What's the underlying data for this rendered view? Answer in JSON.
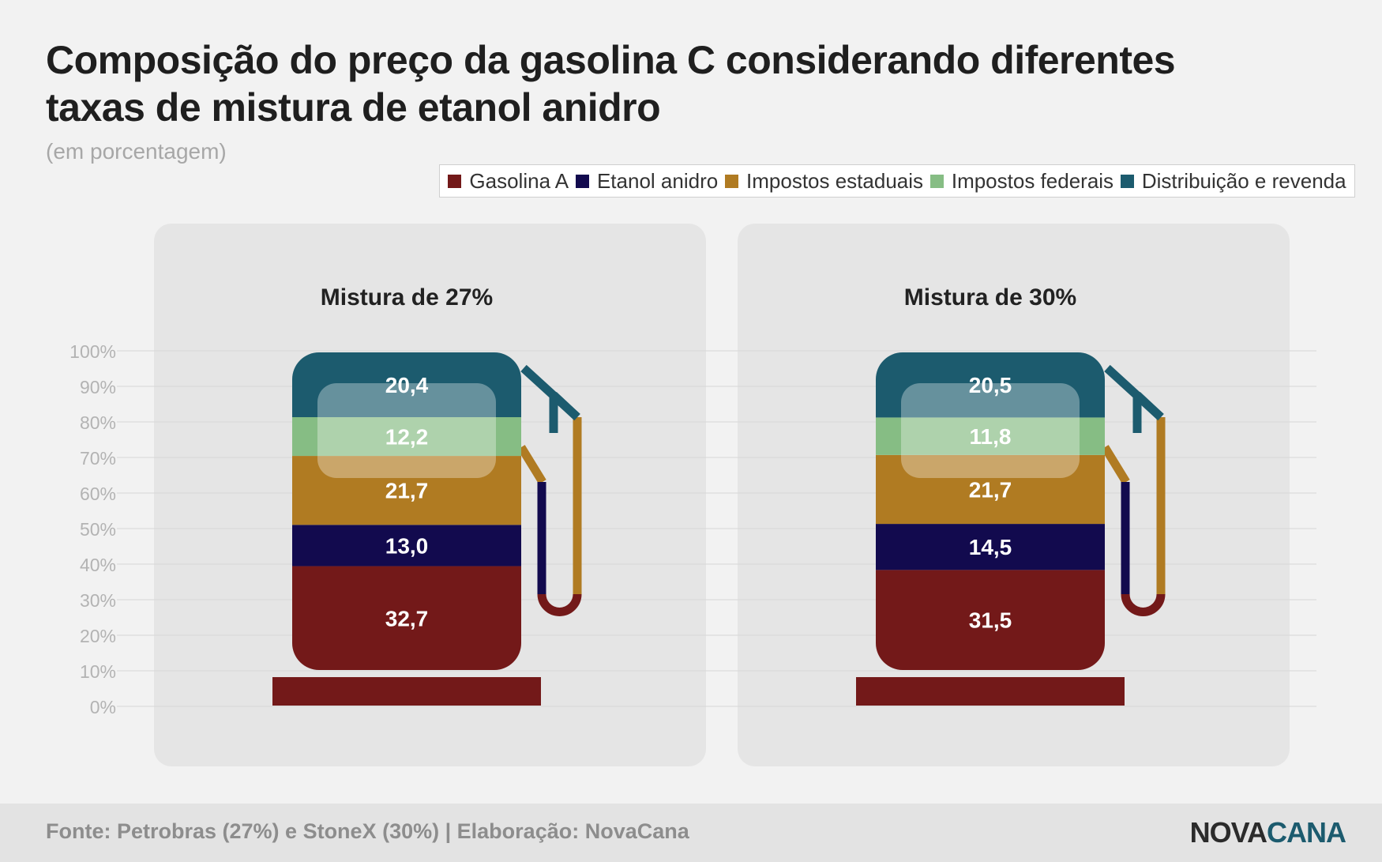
{
  "chart_data": {
    "type": "bar",
    "stacked": true,
    "title": "Composição do preço da gasolina C considerando diferentes taxas de mistura de etanol anidro",
    "subtitle": "(em porcentagem)",
    "categories": [
      "Mistura de 27%",
      "Mistura de 30%"
    ],
    "series": [
      {
        "name": "Gasolina A",
        "color": "#731919",
        "values": [
          32.7,
          31.5
        ],
        "labels": [
          "32,7",
          "31,5"
        ]
      },
      {
        "name": "Etanol anidro",
        "color": "#120a4e",
        "values": [
          13.0,
          14.5
        ],
        "labels": [
          "13,0",
          "14,5"
        ]
      },
      {
        "name": "Impostos estaduais",
        "color": "#b07b22",
        "values": [
          21.7,
          21.7
        ],
        "labels": [
          "21,7",
          "21,7"
        ]
      },
      {
        "name": "Impostos federais",
        "color": "#86bd84",
        "values": [
          12.2,
          11.8
        ],
        "labels": [
          "12,2",
          "11,8"
        ]
      },
      {
        "name": "Distribuição e revenda",
        "color": "#1c5b6e",
        "values": [
          20.4,
          20.5
        ],
        "labels": [
          "20,4",
          "20,5"
        ]
      }
    ],
    "yticks": [
      "100%",
      "90%",
      "80%",
      "70%",
      "60%",
      "50%",
      "40%",
      "30%",
      "20%",
      "10%",
      "0%"
    ],
    "ylim": [
      0,
      100
    ],
    "grid": true,
    "legend_position": "top-right"
  },
  "footer": {
    "source": "Fonte: Petrobras (27%) e StoneX (30%) | Elaboração: NovaCana",
    "brand_part1": "NOVA",
    "brand_part2": "CANA"
  }
}
